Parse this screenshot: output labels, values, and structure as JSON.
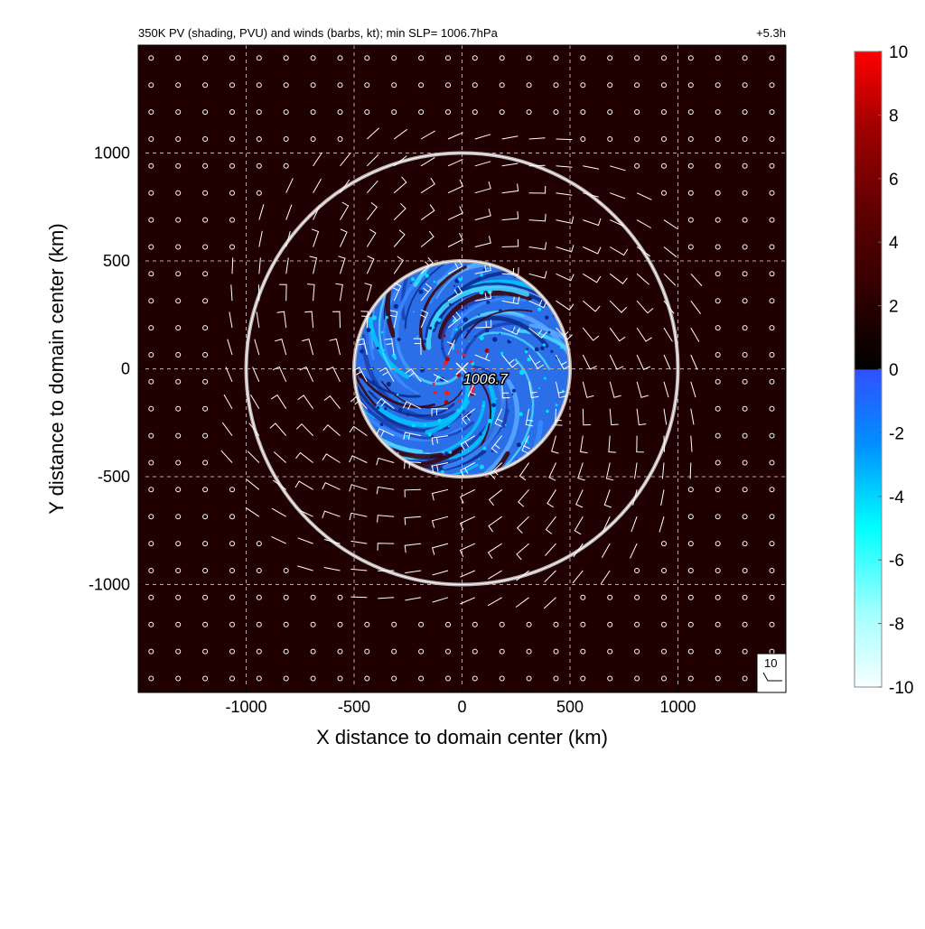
{
  "chart_data": {
    "type": "heatmap",
    "title": "350K PV (shading, PVU) and winds (barbs, kt); min SLP= 1006.7hPa",
    "time_label": "+5.3h",
    "xlabel": "X distance to domain center (km)",
    "ylabel": "Y distance to domain center (km)",
    "xlim": [
      -1500,
      1500
    ],
    "ylim": [
      -1500,
      1500
    ],
    "x_ticks": [
      -1000,
      -500,
      0,
      500,
      1000
    ],
    "y_ticks": [
      -1000,
      -500,
      0,
      500,
      1000
    ],
    "x_tick_labels": [
      "-1000",
      "-500",
      "0",
      "500",
      "1000"
    ],
    "y_tick_labels": [
      "1000",
      "500",
      "0",
      "-500",
      "-1000"
    ],
    "grid": true,
    "range_rings_km": [
      500,
      1000
    ],
    "field_radius_km": 500,
    "min_slp_marker": {
      "x": 0,
      "y": 0,
      "label": "1006.7"
    },
    "barb_spacing_km": 125,
    "reference_barb_label": "10",
    "colorbar": {
      "min": -10,
      "max": 10,
      "tick_values": [
        10,
        8,
        6,
        4,
        2,
        0,
        -2,
        -4,
        -6,
        -8,
        -10
      ],
      "tick_labels": [
        "10",
        "8",
        "6",
        "4",
        "2",
        "0",
        "-2",
        "-4",
        "-6",
        "-8",
        "-10"
      ],
      "colors_positive": [
        "#200000",
        "#4a0000",
        "#7a0000",
        "#b00000",
        "#ff0000"
      ],
      "colors_negative": [
        "#e8ffff",
        "#80ffff",
        "#00ffff",
        "#0080ff",
        "#3050ff"
      ]
    },
    "background_color": "#200000"
  }
}
